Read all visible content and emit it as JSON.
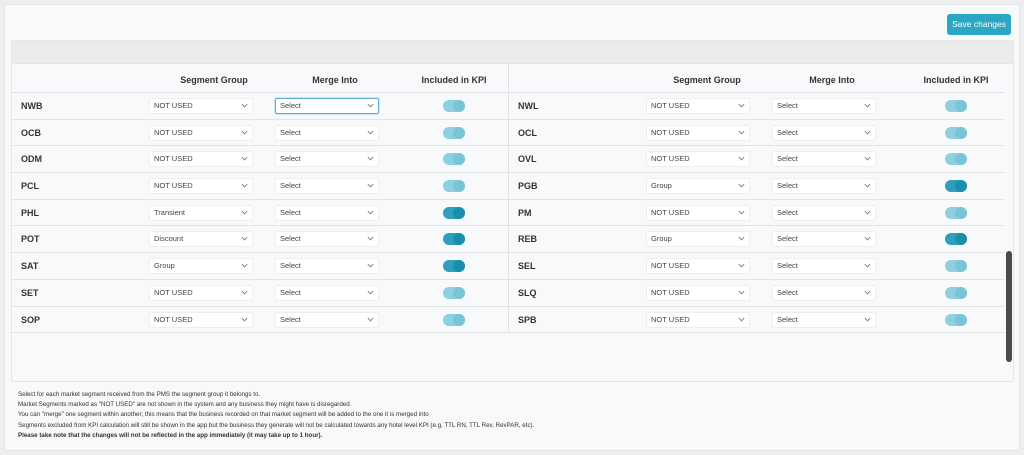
{
  "toolbar": {
    "save_label": "Save changes"
  },
  "table": {
    "headers": {
      "segment_group": "Segment Group",
      "merge_into": "Merge Into",
      "included_in_kpi": "Included in KPI"
    },
    "left": [
      {
        "code": "NWB",
        "group": "NOT USED",
        "merge": "Select",
        "kpi": false
      },
      {
        "code": "OCB",
        "group": "NOT USED",
        "merge": "Select",
        "kpi": false
      },
      {
        "code": "ODM",
        "group": "NOT USED",
        "merge": "Select",
        "kpi": false
      },
      {
        "code": "PCL",
        "group": "NOT USED",
        "merge": "Select",
        "kpi": false
      },
      {
        "code": "PHL",
        "group": "Transient",
        "merge": "Select",
        "kpi": true
      },
      {
        "code": "POT",
        "group": "Discount",
        "merge": "Select",
        "kpi": true
      },
      {
        "code": "SAT",
        "group": "Group",
        "merge": "Select",
        "kpi": true
      },
      {
        "code": "SET",
        "group": "NOT USED",
        "merge": "Select",
        "kpi": false
      },
      {
        "code": "SOP",
        "group": "NOT USED",
        "merge": "Select",
        "kpi": false
      }
    ],
    "right": [
      {
        "code": "NWL",
        "group": "NOT USED",
        "merge": "Select",
        "kpi": false
      },
      {
        "code": "OCL",
        "group": "NOT USED",
        "merge": "Select",
        "kpi": false
      },
      {
        "code": "OVL",
        "group": "NOT USED",
        "merge": "Select",
        "kpi": false
      },
      {
        "code": "PGB",
        "group": "Group",
        "merge": "Select",
        "kpi": true
      },
      {
        "code": "PM",
        "group": "NOT USED",
        "merge": "Select",
        "kpi": false
      },
      {
        "code": "REB",
        "group": "Group",
        "merge": "Select",
        "kpi": true
      },
      {
        "code": "SEL",
        "group": "NOT USED",
        "merge": "Select",
        "kpi": false
      },
      {
        "code": "SLQ",
        "group": "NOT USED",
        "merge": "Select",
        "kpi": false
      },
      {
        "code": "SPB",
        "group": "NOT USED",
        "merge": "Select",
        "kpi": false
      }
    ]
  },
  "notes": {
    "line1": "Select for each market segment received from the PMS the segment group it belongs to.",
    "line2": "Market Segments marked as \"NOT USED\" are not shown in the system and any business they might have is disregarded.",
    "line3": "You can \"merge\" one segment within another; this means that the business recorded on that market segment will be added to the one it is merged into",
    "line4": "Segments excluded from KPI calculation will still be shown in the app but the business they generate will not be calculated towards any hotel level KPI (e.g. TTL RN, TTL Rev, RevPAR, etc).",
    "line5": "Please take note that the changes will not be reflected in the app immediately (it may take up to 1 hour)."
  },
  "colors": {
    "accent": "#2aa7c3",
    "toggle_on": "#2ea0bd",
    "toggle_off": "#8ed0df"
  }
}
